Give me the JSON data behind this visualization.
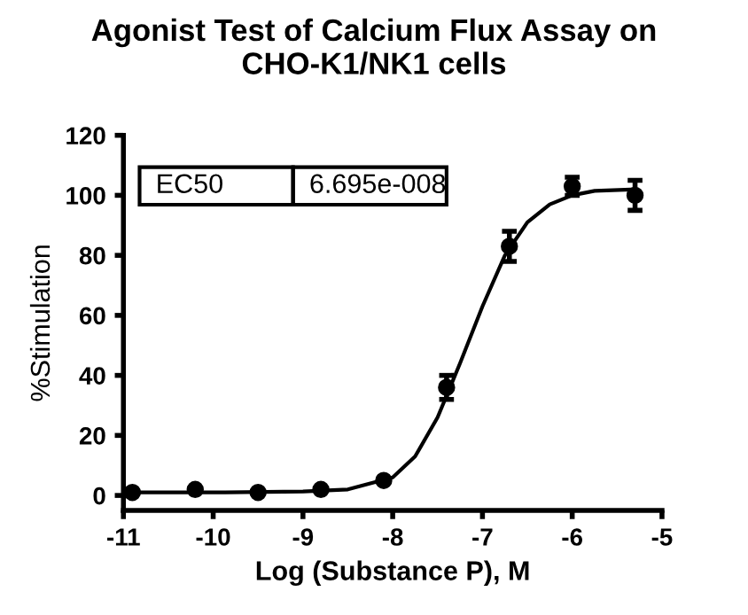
{
  "chart_data": {
    "type": "scatter",
    "title": "Agonist Test of Calcium Flux Assay on\nCHO-K1/NK1 cells",
    "xlabel": "Log (Substance P), M",
    "ylabel": "%Stimulation",
    "annotations": [
      "EC50",
      "6.695e-008"
    ],
    "series": [
      {
        "color": "#000000",
        "marker": "circle",
        "x": [
          -10.9,
          -10.2,
          -9.5,
          -8.8,
          -8.1,
          -7.4,
          -6.7,
          -6.0,
          -5.3
        ],
        "values": [
          1,
          2,
          1,
          2,
          5,
          36,
          83,
          103,
          100
        ],
        "errors": [
          null,
          null,
          null,
          null,
          null,
          4,
          5,
          3,
          5
        ]
      },
      {
        "type": "line",
        "color": "#000000",
        "x": [
          -10.9,
          -10,
          -9,
          -8.5,
          -8,
          -7.75,
          -7.5,
          -7.25,
          -7,
          -6.75,
          -6.5,
          -6.25,
          -6,
          -5.75,
          -5.3
        ],
        "values": [
          1,
          1,
          1.3,
          2,
          6,
          13,
          26,
          44,
          63,
          80,
          91,
          97,
          100,
          101.5,
          102
        ]
      }
    ],
    "xlim": [
      -11,
      -5
    ],
    "xticks": [
      -11,
      -10,
      -9,
      -8,
      -7,
      -6,
      -5
    ],
    "ylim": [
      -5,
      120
    ],
    "yticks": [
      0,
      20,
      40,
      60,
      80,
      100,
      120
    ],
    "grid": false,
    "legend": false
  }
}
